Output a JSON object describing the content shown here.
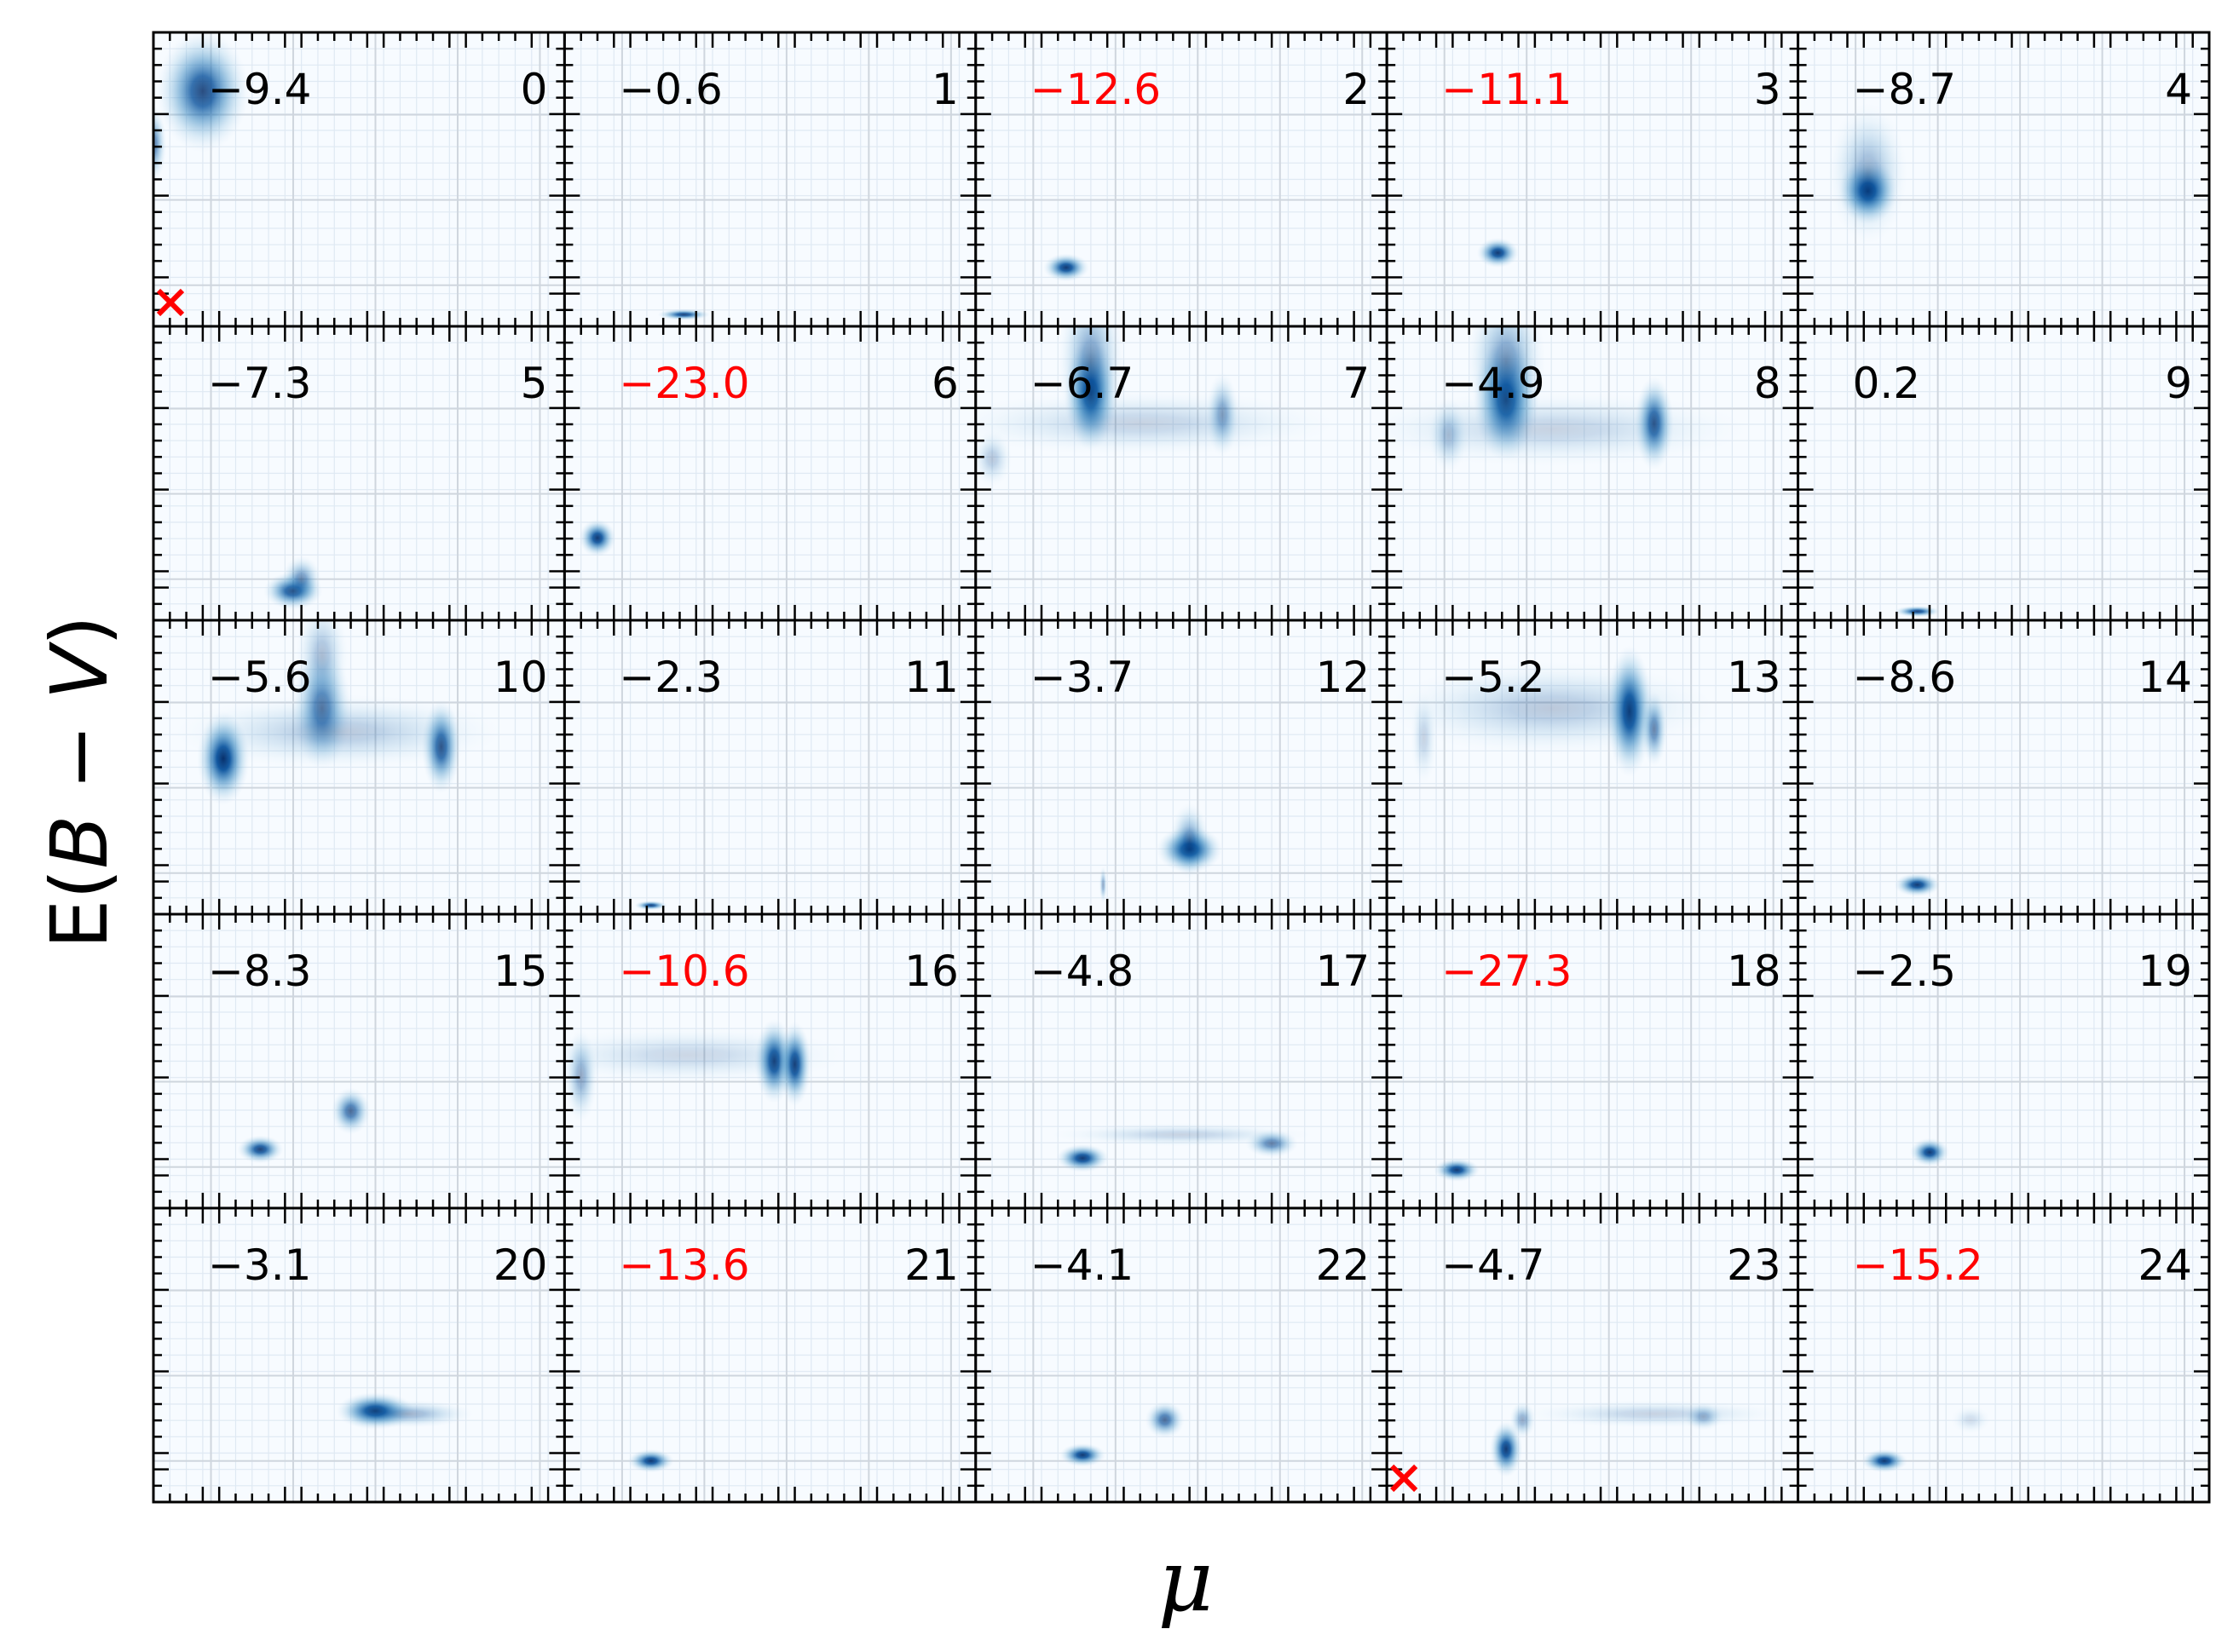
{
  "chart_data": {
    "type": "heatmap",
    "layout": {
      "rows": 5,
      "cols": 5
    },
    "xlabel": "μ",
    "ylabel_prefix": "E(",
    "ylabel_B": "B",
    "ylabel_mid": " − ",
    "ylabel_V": "V",
    "ylabel_suffix": ")",
    "colormap": "Blues",
    "highlight_color": "#ff0000",
    "normal_color": "#000000",
    "marker_color": "#ff0000",
    "marker_symbol": "×",
    "panels": [
      {
        "index": "0",
        "value": "−9.4",
        "highlight": false,
        "marker": true,
        "blobs": [
          [
            0.12,
            0.8,
            0.07,
            0.13,
            0.85
          ],
          [
            0.0,
            0.62,
            0.02,
            0.08,
            0.6
          ]
        ]
      },
      {
        "index": "1",
        "value": "−0.6",
        "highlight": false,
        "marker": false,
        "blobs": [
          [
            0.29,
            0.04,
            0.04,
            0.012,
            0.9
          ]
        ]
      },
      {
        "index": "2",
        "value": "−12.6",
        "highlight": true,
        "marker": false,
        "blobs": [
          [
            0.22,
            0.2,
            0.035,
            0.03,
            0.95
          ]
        ]
      },
      {
        "index": "3",
        "value": "−11.1",
        "highlight": true,
        "marker": false,
        "blobs": [
          [
            0.27,
            0.25,
            0.032,
            0.032,
            0.95
          ]
        ]
      },
      {
        "index": "4",
        "value": "−8.7",
        "highlight": false,
        "marker": false,
        "blobs": [
          [
            0.17,
            0.46,
            0.045,
            0.07,
            1.0
          ],
          [
            0.17,
            0.52,
            0.06,
            0.15,
            0.35
          ]
        ]
      },
      {
        "index": "5",
        "value": "−7.3",
        "highlight": false,
        "marker": false,
        "blobs": [
          [
            0.34,
            0.1,
            0.045,
            0.04,
            0.9
          ],
          [
            0.36,
            0.14,
            0.03,
            0.05,
            0.5
          ]
        ]
      },
      {
        "index": "6",
        "value": "−23.0",
        "highlight": true,
        "marker": false,
        "blobs": [
          [
            0.08,
            0.28,
            0.028,
            0.04,
            0.95
          ]
        ]
      },
      {
        "index": "7",
        "value": "−6.7",
        "highlight": false,
        "marker": false,
        "blobs": [
          [
            0.28,
            0.77,
            0.04,
            0.12,
            1.0
          ],
          [
            0.28,
            0.88,
            0.05,
            0.18,
            0.45
          ],
          [
            0.6,
            0.7,
            0.025,
            0.09,
            0.45
          ],
          [
            0.4,
            0.67,
            0.3,
            0.07,
            0.2
          ],
          [
            0.04,
            0.55,
            0.03,
            0.06,
            0.25
          ]
        ]
      },
      {
        "index": "8",
        "value": "−4.9",
        "highlight": false,
        "marker": false,
        "blobs": [
          [
            0.29,
            0.75,
            0.05,
            0.13,
            1.0
          ],
          [
            0.29,
            0.88,
            0.06,
            0.16,
            0.45
          ],
          [
            0.65,
            0.67,
            0.03,
            0.1,
            0.85
          ],
          [
            0.15,
            0.63,
            0.03,
            0.08,
            0.3
          ],
          [
            0.4,
            0.65,
            0.3,
            0.08,
            0.2
          ]
        ]
      },
      {
        "index": "9",
        "value": "0.2",
        "highlight": false,
        "marker": false,
        "blobs": [
          [
            0.29,
            0.03,
            0.035,
            0.012,
            0.9
          ]
        ]
      },
      {
        "index": "10",
        "value": "−5.6",
        "highlight": false,
        "marker": false,
        "blobs": [
          [
            0.17,
            0.53,
            0.04,
            0.1,
            1.0
          ],
          [
            0.41,
            0.7,
            0.045,
            0.13,
            0.7
          ],
          [
            0.7,
            0.57,
            0.03,
            0.1,
            0.85
          ],
          [
            0.45,
            0.62,
            0.25,
            0.08,
            0.25
          ],
          [
            0.41,
            0.88,
            0.04,
            0.12,
            0.3
          ]
        ]
      },
      {
        "index": "11",
        "value": "−2.3",
        "highlight": false,
        "marker": false,
        "blobs": [
          [
            0.21,
            0.03,
            0.025,
            0.01,
            0.9
          ]
        ]
      },
      {
        "index": "12",
        "value": "−3.7",
        "highlight": false,
        "marker": false,
        "blobs": [
          [
            0.52,
            0.22,
            0.05,
            0.05,
            1.0
          ],
          [
            0.52,
            0.25,
            0.03,
            0.08,
            0.5
          ],
          [
            0.31,
            0.1,
            0.006,
            0.04,
            0.4
          ]
        ]
      },
      {
        "index": "13",
        "value": "−5.2",
        "highlight": false,
        "marker": false,
        "blobs": [
          [
            0.59,
            0.69,
            0.035,
            0.14,
            1.0
          ],
          [
            0.65,
            0.63,
            0.02,
            0.08,
            0.6
          ],
          [
            0.4,
            0.7,
            0.25,
            0.1,
            0.25
          ],
          [
            0.09,
            0.6,
            0.02,
            0.1,
            0.2
          ]
        ]
      },
      {
        "index": "14",
        "value": "−8.6",
        "highlight": false,
        "marker": false,
        "blobs": [
          [
            0.29,
            0.1,
            0.035,
            0.025,
            0.95
          ]
        ]
      },
      {
        "index": "15",
        "value": "−8.3",
        "highlight": false,
        "marker": false,
        "blobs": [
          [
            0.26,
            0.2,
            0.035,
            0.03,
            0.9
          ],
          [
            0.48,
            0.33,
            0.03,
            0.05,
            0.7
          ]
        ]
      },
      {
        "index": "16",
        "value": "−10.6",
        "highlight": true,
        "marker": false,
        "blobs": [
          [
            0.51,
            0.5,
            0.03,
            0.09,
            0.95
          ],
          [
            0.56,
            0.49,
            0.025,
            0.09,
            0.95
          ],
          [
            0.04,
            0.45,
            0.025,
            0.1,
            0.4
          ],
          [
            0.3,
            0.52,
            0.25,
            0.06,
            0.18
          ]
        ]
      },
      {
        "index": "17",
        "value": "−4.8",
        "highlight": false,
        "marker": false,
        "blobs": [
          [
            0.26,
            0.17,
            0.04,
            0.03,
            0.95
          ],
          [
            0.72,
            0.22,
            0.04,
            0.03,
            0.6
          ],
          [
            0.5,
            0.25,
            0.2,
            0.025,
            0.2
          ]
        ]
      },
      {
        "index": "18",
        "value": "−27.3",
        "highlight": true,
        "marker": false,
        "blobs": [
          [
            0.17,
            0.13,
            0.035,
            0.025,
            0.95
          ]
        ]
      },
      {
        "index": "19",
        "value": "−2.5",
        "highlight": false,
        "marker": false,
        "blobs": [
          [
            0.32,
            0.19,
            0.03,
            0.03,
            0.95
          ]
        ]
      },
      {
        "index": "20",
        "value": "−3.1",
        "highlight": false,
        "marker": false,
        "blobs": [
          [
            0.54,
            0.31,
            0.06,
            0.04,
            1.0
          ],
          [
            0.62,
            0.3,
            0.1,
            0.03,
            0.35
          ]
        ]
      },
      {
        "index": "21",
        "value": "−13.6",
        "highlight": true,
        "marker": false,
        "blobs": [
          [
            0.21,
            0.14,
            0.035,
            0.025,
            0.95
          ]
        ]
      },
      {
        "index": "22",
        "value": "−4.1",
        "highlight": false,
        "marker": false,
        "blobs": [
          [
            0.26,
            0.16,
            0.035,
            0.025,
            0.95
          ],
          [
            0.46,
            0.28,
            0.03,
            0.04,
            0.7
          ]
        ]
      },
      {
        "index": "23",
        "value": "−4.7",
        "highlight": false,
        "marker": true,
        "blobs": [
          [
            0.29,
            0.18,
            0.025,
            0.06,
            0.95
          ],
          [
            0.33,
            0.28,
            0.02,
            0.04,
            0.4
          ],
          [
            0.65,
            0.3,
            0.2,
            0.03,
            0.2
          ],
          [
            0.77,
            0.29,
            0.03,
            0.03,
            0.35
          ]
        ]
      },
      {
        "index": "24",
        "value": "−15.2",
        "highlight": true,
        "marker": false,
        "blobs": [
          [
            0.21,
            0.14,
            0.035,
            0.025,
            0.95
          ],
          [
            0.42,
            0.28,
            0.03,
            0.03,
            0.15
          ]
        ]
      }
    ]
  }
}
